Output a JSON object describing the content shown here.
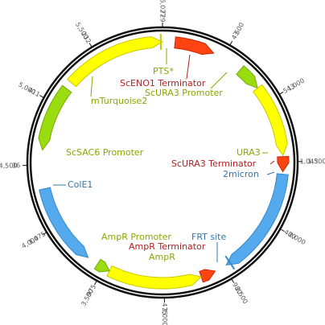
{
  "plasmid": {
    "total_length": 6027,
    "colors": {
      "backbone": "#111111",
      "yellow": "#ffff00",
      "yellow_stroke": "#c9c900",
      "green": "#99dd11",
      "green_stroke": "#77aa00",
      "red": "#ff4411",
      "red_stroke": "#cc2200",
      "blue": "#55aaee",
      "blue_stroke": "#3388cc",
      "label_yellow_green": "#8aa600",
      "label_red": "#b22222",
      "label_blue": "#3377aa",
      "tick_text": "#555555"
    },
    "ticks": [
      {
        "pos": 0,
        "label": "6,027",
        "sub": "729"
      },
      {
        "pos": 500,
        "label": "500",
        "sub": "43"
      },
      {
        "pos": 1000,
        "label": "1,000",
        "sub": "543"
      },
      {
        "pos": 1500,
        "label": "1,500",
        "sub": "1,043"
      },
      {
        "pos": 2000,
        "label": "2,000",
        "sub": "480"
      },
      {
        "pos": 2500,
        "label": "2,500",
        "sub": "980"
      },
      {
        "pos": 3000,
        "label": "3,000",
        "sub": "475"
      },
      {
        "pos": 3500,
        "label": "3,500",
        "sub": "975"
      },
      {
        "pos": 4000,
        "label": "4,000",
        "sub": "1,475"
      },
      {
        "pos": 4500,
        "label": "4,500",
        "sub": "36"
      },
      {
        "pos": 5000,
        "label": "5,000",
        "sub": "411"
      },
      {
        "pos": 5500,
        "label": "5,500",
        "sub": "232"
      }
    ],
    "features": [
      {
        "name": "mTurquoise2",
        "start": 5210,
        "end": 6027,
        "strand": 1,
        "color": "yellow",
        "label_color": "label_yellow_green"
      },
      {
        "name": "PTS*",
        "start": 6000,
        "end": 6027,
        "strand": 1,
        "color": "yellow",
        "label_color": "label_yellow_green"
      },
      {
        "name": "ScENO1 Terminator",
        "start": 100,
        "end": 420,
        "strand": 1,
        "color": "red",
        "label_color": "label_red"
      },
      {
        "name": "ScURA3 Promoter",
        "start": 670,
        "end": 870,
        "strand": 1,
        "color": "green",
        "label_color": "label_yellow_green"
      },
      {
        "name": "URA3",
        "start": 870,
        "end": 1450,
        "strand": 1,
        "color": "yellow",
        "label_color": "label_yellow_green"
      },
      {
        "name": "ScURA3 Terminator",
        "start": 1460,
        "end": 1580,
        "strand": 1,
        "color": "red",
        "label_color": "label_red"
      },
      {
        "name": "2micron",
        "start": 1600,
        "end": 2480,
        "strand": 1,
        "color": "blue",
        "label_color": "label_blue"
      },
      {
        "name": "FRT site",
        "start": 2420,
        "end": 2470,
        "strand": 1,
        "color": "blue",
        "label_color": "label_blue"
      },
      {
        "name": "AmpR Terminator",
        "start": 2580,
        "end": 2700,
        "strand": -1,
        "color": "red",
        "label_color": "label_red"
      },
      {
        "name": "AmpR",
        "start": 2700,
        "end": 3450,
        "strand": -1,
        "color": "yellow",
        "label_color": "label_yellow_green"
      },
      {
        "name": "AmpR Promoter",
        "start": 3450,
        "end": 3560,
        "strand": -1,
        "color": "green",
        "label_color": "label_yellow_green"
      },
      {
        "name": "ColE1",
        "start": 3650,
        "end": 4310,
        "strand": -1,
        "color": "blue",
        "label_color": "label_blue"
      },
      {
        "name": "ScSAC6 Promoter",
        "start": 4620,
        "end": 5150,
        "strand": -1,
        "color": "green",
        "label_color": "label_yellow_green"
      }
    ]
  }
}
